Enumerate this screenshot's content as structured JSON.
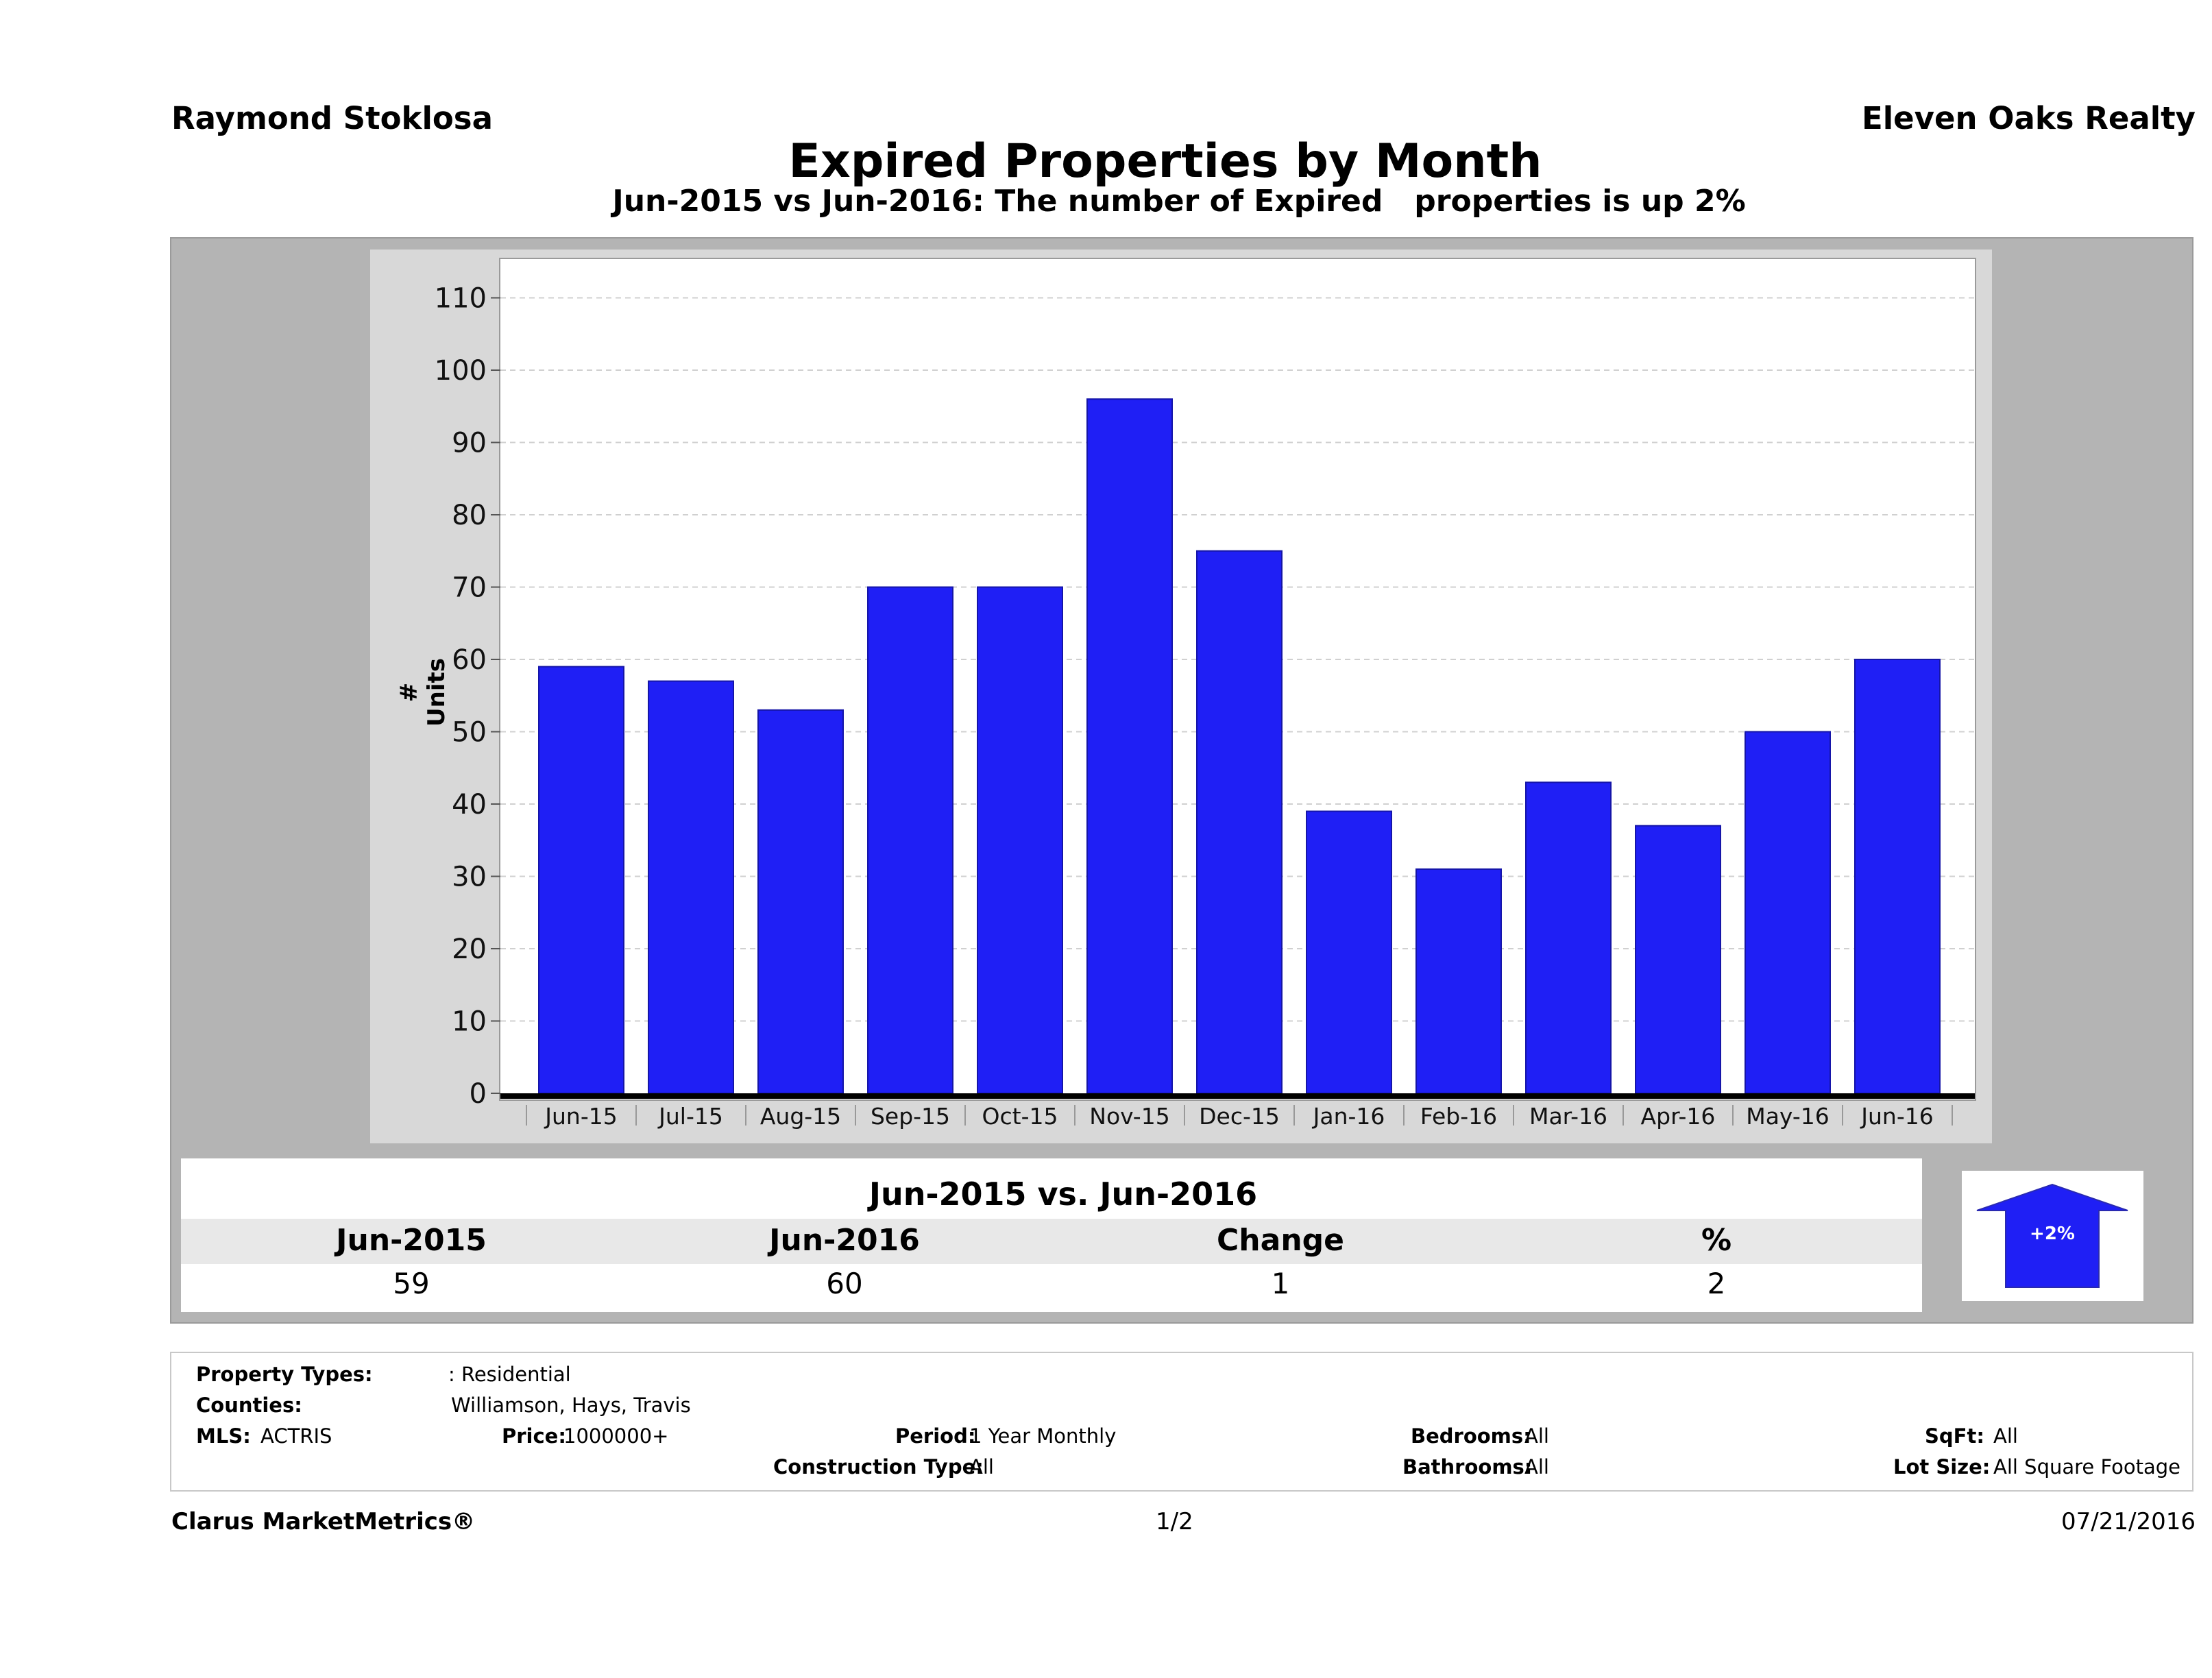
{
  "header": {
    "agent": "Raymond Stoklosa",
    "brokerage": "Eleven Oaks Realty",
    "title": "Expired Properties by Month",
    "subtitle": "Jun-2015 vs Jun-2016: The number of Expired   properties is up 2%"
  },
  "chart_data": {
    "type": "bar",
    "categories": [
      "Jun-15",
      "Jul-15",
      "Aug-15",
      "Sep-15",
      "Oct-15",
      "Nov-15",
      "Dec-15",
      "Jan-16",
      "Feb-16",
      "Mar-16",
      "Apr-16",
      "May-16",
      "Jun-16"
    ],
    "values": [
      59,
      57,
      53,
      70,
      70,
      96,
      75,
      39,
      31,
      43,
      37,
      50,
      60
    ],
    "ylabel": "# Units",
    "ylim": [
      0,
      110
    ],
    "yticks": [
      "0",
      "10",
      "20",
      "30",
      "40",
      "50",
      "60",
      "70",
      "80",
      "90",
      "100",
      "110"
    ],
    "grid": true,
    "bar_color": "#1f1ff5"
  },
  "comparison": {
    "title": "Jun-2015 vs. Jun-2016",
    "headers": [
      "Jun-2015",
      "Jun-2016",
      "Change",
      "%"
    ],
    "values": [
      "59",
      "60",
      "1",
      "2"
    ],
    "arrow_label": "+2%",
    "arrow_icon": "up-arrow-icon",
    "arrow_color": "#1f1ff5"
  },
  "filters": {
    "property_types_label": "Property Types:",
    "property_types_value": ": Residential",
    "counties_label": "Counties:",
    "counties_value": "Williamson, Hays, Travis",
    "mls_label": "MLS:",
    "mls_value": "ACTRIS",
    "price_label": "Price:",
    "price_value": "1000000+",
    "period_label": "Period:",
    "period_value": "1 Year Monthly",
    "construction_label": "Construction Type:",
    "construction_value": "All",
    "bedrooms_label": "Bedrooms:",
    "bedrooms_value": "All",
    "bathrooms_label": "Bathrooms:",
    "bathrooms_value": "All",
    "sqft_label": "SqFt:",
    "sqft_value": "All",
    "lot_label": "Lot Size:",
    "lot_value": "All Square Footage"
  },
  "footer": {
    "brand": "Clarus MarketMetrics®",
    "page": "1/2",
    "date": "07/21/2016"
  }
}
